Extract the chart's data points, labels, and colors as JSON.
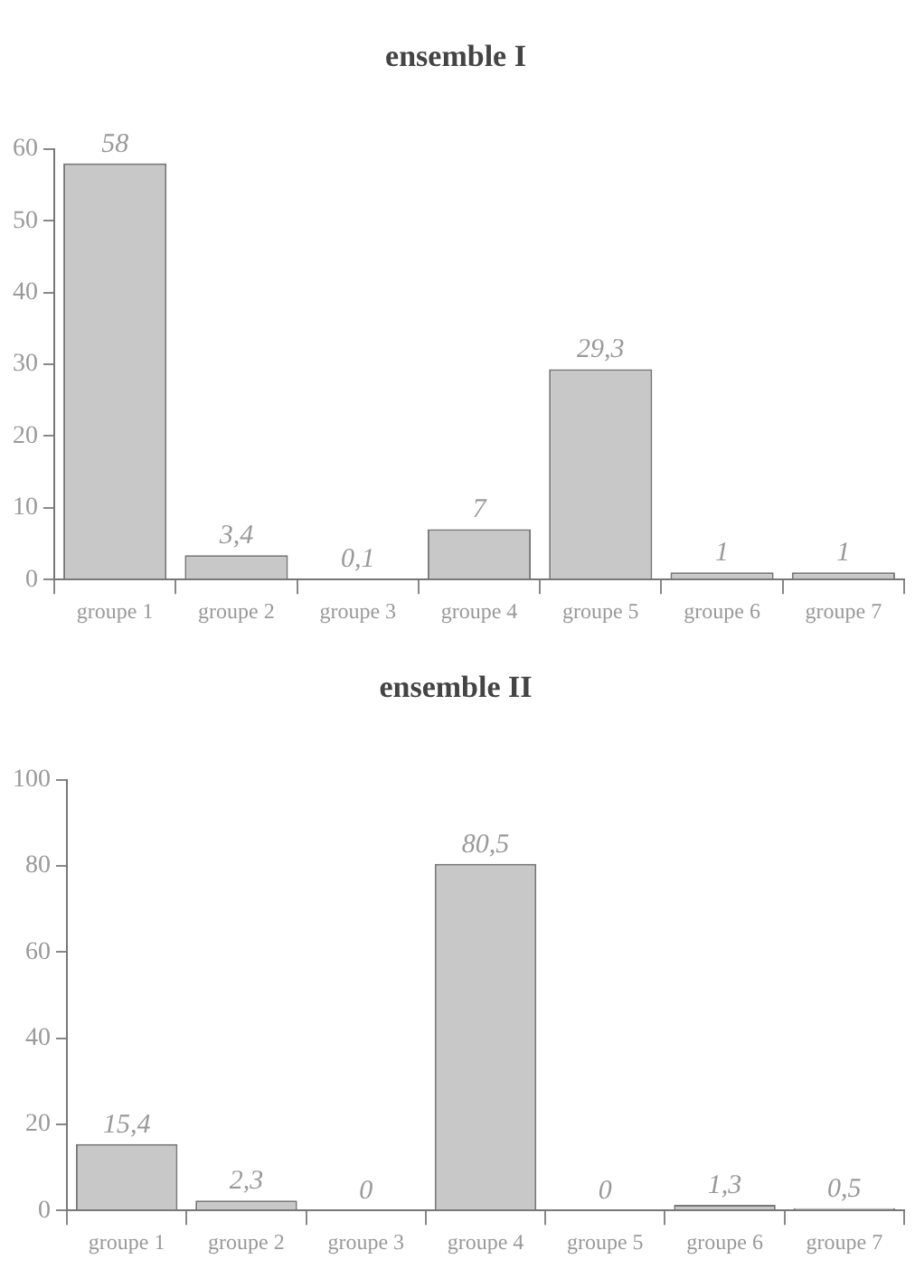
{
  "chart_data": [
    {
      "type": "bar",
      "title": "ensemble I",
      "categories": [
        "groupe 1",
        "groupe 2",
        "groupe 3",
        "groupe 4",
        "groupe 5",
        "groupe 6",
        "groupe 7"
      ],
      "values": [
        58,
        3.4,
        0.1,
        7,
        29.3,
        1,
        1
      ],
      "value_labels": [
        "58",
        "3,4",
        "0,1",
        "7",
        "29,3",
        "1",
        "1"
      ],
      "color": "#c8c8c8",
      "ylim": [
        0,
        60
      ],
      "yticks": [
        0,
        10,
        20,
        30,
        40,
        50,
        60
      ],
      "grid": false,
      "legend": false
    },
    {
      "type": "bar",
      "title": "ensemble II",
      "categories": [
        "groupe 1",
        "groupe 2",
        "groupe 3",
        "groupe 4",
        "groupe 5",
        "groupe 6",
        "groupe 7"
      ],
      "values": [
        15.4,
        2.3,
        0,
        80.5,
        0,
        1.3,
        0.5
      ],
      "value_labels": [
        "15,4",
        "2,3",
        "0",
        "80,5",
        "0",
        "1,3",
        "0,5"
      ],
      "color": "#c8c8c8",
      "ylim": [
        0,
        100
      ],
      "yticks": [
        0,
        20,
        40,
        60,
        80,
        100
      ],
      "grid": false,
      "legend": false
    }
  ]
}
